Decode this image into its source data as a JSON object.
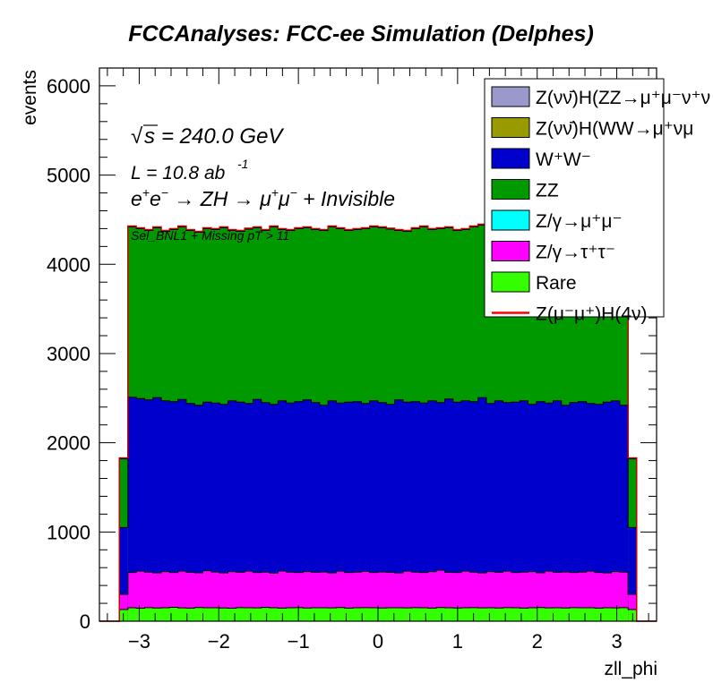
{
  "chart_data": {
    "type": "area",
    "stacked": true,
    "title": "FCCAnalyses: FCC-ee Simulation (Delphes)",
    "xlabel": "zll_phi",
    "ylabel": "events",
    "xlim": [
      -3.5,
      3.5
    ],
    "ylim": [
      0,
      6200
    ],
    "x_ticks": [
      "−3",
      "−2",
      "−1",
      "0",
      "1",
      "2",
      "3"
    ],
    "y_ticks": [
      "0",
      "1000",
      "2000",
      "3000",
      "4000",
      "5000",
      "6000"
    ],
    "annotations": {
      "sqrt_s": "= 240.0 GeV",
      "lumi": "L = 10.8 ab",
      "lumi_exp": "-1",
      "process_part1": "+",
      "process_text": "e⁺e⁻ → ZH → μ⁺μ⁻ + Invisible",
      "selection": "Sel_BNL1 + Missing pT > 11"
    },
    "bins": {
      "x_start": -3.142,
      "x_end": 3.142,
      "count": 60
    },
    "edge_bins": {
      "left_x": [
        -3.25,
        -3.142
      ],
      "right_x": [
        3.142,
        3.25
      ],
      "rare": 130,
      "tautau": 300,
      "ww": 1050,
      "zz_top": 1820
    },
    "series": [
      {
        "name": "Z(νν̄)H(ZZ→μ⁺μ⁻ν⁺ν)",
        "color": "#9999cc",
        "values_level": 0
      },
      {
        "name": "Z(νν̄)H(WW→μ⁺νμ⁻ν)",
        "color": "#999900",
        "values_level": 0
      },
      {
        "name": "W⁺W⁻",
        "color": "#0000cc",
        "values_level": 1900
      },
      {
        "name": "ZZ",
        "color": "#009900",
        "values_level": 1900
      },
      {
        "name": "Z/γ→μ⁺μ⁻",
        "color": "#00ffff",
        "values_level": 0
      },
      {
        "name": "Z/γ→τ⁺τ⁻",
        "color": "#ff00ff",
        "values_level": 380
      },
      {
        "name": "Rare",
        "color": "#33ff00",
        "values_level": 150
      },
      {
        "name": "Z(μ⁻μ⁺)H(4ν)",
        "color": "#ff0000",
        "values_level": 10
      }
    ],
    "stack_tops": {
      "rare": [
        150,
        145,
        152,
        148,
        150,
        155,
        149,
        147,
        153,
        150,
        151,
        148,
        146,
        152,
        150,
        149,
        154,
        151,
        147,
        150,
        152,
        148,
        150,
        151,
        149,
        153,
        147,
        150,
        152,
        150,
        148,
        151,
        150,
        149,
        152,
        150,
        147,
        153,
        150,
        148,
        151,
        152,
        149,
        150,
        148,
        152,
        151,
        147,
        150,
        153,
        149,
        150,
        148,
        152,
        150,
        151,
        147,
        150,
        149,
        152
      ],
      "tautau": [
        545,
        560,
        550,
        540,
        555,
        545,
        560,
        548,
        542,
        565,
        552,
        540,
        555,
        548,
        560,
        545,
        550,
        538,
        562,
        550,
        545,
        555,
        548,
        552,
        540,
        560,
        545,
        550,
        558,
        545,
        552,
        548,
        540,
        560,
        550,
        545,
        555,
        572,
        548,
        545,
        560,
        550,
        540,
        555,
        548,
        560,
        545,
        550,
        555,
        542,
        560,
        548,
        552,
        545,
        550,
        560,
        545,
        540,
        555,
        550
      ],
      "ww": [
        2510,
        2495,
        2480,
        2505,
        2470,
        2460,
        2485,
        2440,
        2420,
        2455,
        2445,
        2430,
        2470,
        2455,
        2440,
        2485,
        2450,
        2430,
        2470,
        2445,
        2460,
        2480,
        2450,
        2420,
        2470,
        2445,
        2455,
        2460,
        2440,
        2470,
        2450,
        2430,
        2480,
        2455,
        2460,
        2445,
        2470,
        2450,
        2490,
        2455,
        2470,
        2460,
        2505,
        2440,
        2470,
        2450,
        2455,
        2470,
        2430,
        2460,
        2445,
        2470,
        2420,
        2450,
        2460,
        2440,
        2430,
        2455,
        2470,
        2420
      ],
      "zz": [
        4420,
        4400,
        4380,
        4410,
        4370,
        4390,
        4420,
        4380,
        4360,
        4400,
        4390,
        4410,
        4380,
        4370,
        4395,
        4410,
        4380,
        4420,
        4390,
        4380,
        4400,
        4410,
        4390,
        4380,
        4420,
        4400,
        4380,
        4390,
        4400,
        4420,
        4410,
        4395,
        4380,
        4370,
        4400,
        4420,
        4390,
        4400,
        4410,
        4380,
        4390,
        4420,
        4440,
        4380,
        4430,
        4400,
        4390,
        4410,
        4380,
        4420,
        4400,
        4390,
        4380,
        4410,
        4400,
        4390,
        4380,
        4370,
        4360,
        4350
      ]
    }
  },
  "legend": {
    "entries": [
      {
        "label": "Z(νν̄)H(ZZ→μ⁺μ⁻ν⁺ν",
        "color": "#9999cc",
        "kind": "box"
      },
      {
        "label": "Z(νν̄)H(WW→μ⁺νμ",
        "color": "#999900",
        "kind": "box"
      },
      {
        "label": "W⁺W⁻",
        "color": "#0000cc",
        "kind": "box"
      },
      {
        "label": "ZZ",
        "color": "#009900",
        "kind": "box"
      },
      {
        "label": "Z/γ→μ⁺μ⁻",
        "color": "#00ffff",
        "kind": "box"
      },
      {
        "label": "Z/γ→τ⁺τ⁻",
        "color": "#ff00ff",
        "kind": "box"
      },
      {
        "label": "Rare",
        "color": "#33ff00",
        "kind": "box"
      },
      {
        "label": "Z(μ⁻μ⁺)H(4ν)",
        "color": "#ff0000",
        "kind": "line"
      }
    ]
  }
}
